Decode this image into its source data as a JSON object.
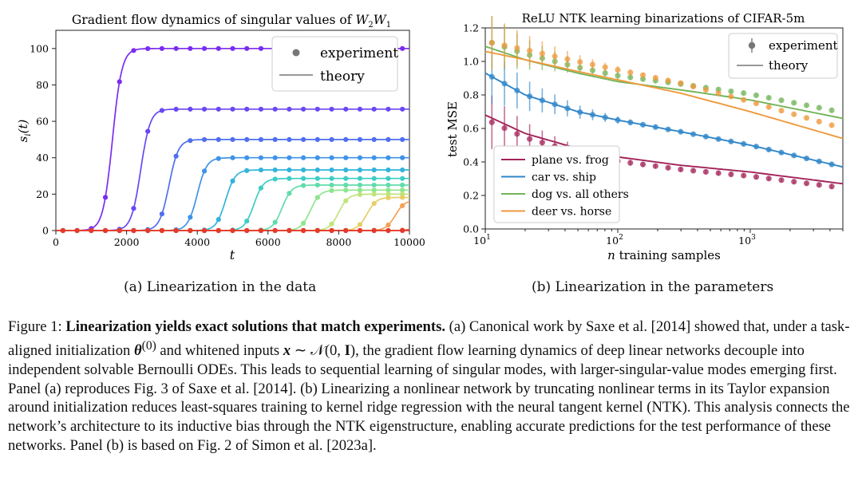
{
  "caption": {
    "label": "Figure 1:",
    "bold": "Linearization yields exact solutions that match experiments.",
    "p1": "(a) Canonical work by Saxe et al. [2014] showed that, under a task-aligned initialization",
    "theta": "θ",
    "theta_sup": "(0)",
    "p2": "and whitened inputs",
    "x": "x",
    "p3": "∼ 𝒩(0,",
    "I": "I",
    "p4": "), the gradient flow learning dynamics of deep linear networks decouple into independent solvable Bernoulli ODEs. This leads to sequential learning of singular modes, with larger-singular-value modes emerging first. Panel (a) reproduces Fig. 3 of Saxe et al. [2014]. (b) Linearizing a nonlinear network by truncating nonlinear terms in its Taylor expansion around initialization reduces least-squares training to kernel ridge regression with the neural tangent kernel (NTK). This analysis connects the network’s architecture to its inductive bias through the NTK eigenstructure, enabling accurate predictions for the test performance of these networks. Panel (b) is based on Fig. 2 of Simon et al. [2023a]."
  },
  "chart_data": [
    {
      "type": "line",
      "panel_caption": "(a) Linearization in the data",
      "title": "Gradient flow dynamics of singular values of",
      "title_math": [
        "W",
        "2",
        "W",
        "1"
      ],
      "xlabel": "t",
      "ylabel_math": [
        "s",
        "i",
        "(t)"
      ],
      "xlim": [
        0,
        10000
      ],
      "ylim": [
        0,
        110
      ],
      "xticks": [
        "0",
        "2000",
        "4000",
        "6000",
        "8000",
        "10000"
      ],
      "yticks": [
        "0",
        "20",
        "40",
        "60",
        "80",
        "100"
      ],
      "legend": {
        "position": "upper right",
        "entries": [
          "experiment",
          "theory"
        ]
      },
      "series": [
        {
          "final": 100,
          "t_half": 1600,
          "color": "#7b2cf0"
        },
        {
          "final": 66.7,
          "t_half": 2400,
          "color": "#6a47f2"
        },
        {
          "final": 50,
          "t_half": 3200,
          "color": "#4f6ff0"
        },
        {
          "final": 40,
          "t_half": 4000,
          "color": "#3f93e8"
        },
        {
          "final": 33.3,
          "t_half": 4800,
          "color": "#33b3dc"
        },
        {
          "final": 28.6,
          "t_half": 5600,
          "color": "#3dcdc5"
        },
        {
          "final": 25,
          "t_half": 6400,
          "color": "#62dcaa"
        },
        {
          "final": 22.2,
          "t_half": 7200,
          "color": "#8fe58f"
        },
        {
          "final": 20,
          "t_half": 8000,
          "color": "#bfe47b"
        },
        {
          "final": 18.2,
          "t_half": 8800,
          "color": "#e6cf68"
        },
        {
          "final": 16.7,
          "t_half": 9600,
          "color": "#f59f55"
        },
        {
          "final": 15.4,
          "t_half": 10400,
          "color": "#f0663f"
        },
        {
          "final": 14.3,
          "t_half": 11200,
          "color": "#e33a2d"
        }
      ]
    },
    {
      "type": "line",
      "panel_caption": "(b) Linearization in the parameters",
      "title": "ReLU NTK learning binarizations of CIFAR-5m",
      "xlabel_math": [
        "n",
        " training samples"
      ],
      "ylabel": "test MSE",
      "xscale": "log",
      "xlim": [
        10,
        5000
      ],
      "ylim": [
        0,
        1.2
      ],
      "yticks": [
        "0.0",
        "0.2",
        "0.4",
        "0.6",
        "0.8",
        "1.0",
        "1.2"
      ],
      "xticks": [
        {
          "base": "10",
          "exp": "1"
        },
        {
          "base": "10",
          "exp": "2"
        },
        {
          "base": "10",
          "exp": "3"
        }
      ],
      "legend_top": {
        "position": "upper right",
        "entries": [
          "experiment",
          "theory"
        ]
      },
      "legend_bottom": {
        "position": "lower left"
      },
      "series": [
        {
          "name": "plane vs. frog",
          "color": "#a3235a",
          "theory": [
            [
              10,
              0.68
            ],
            [
              20,
              0.57
            ],
            [
              50,
              0.48
            ],
            [
              100,
              0.43
            ],
            [
              300,
              0.38
            ],
            [
              1000,
              0.34
            ],
            [
              5000,
              0.27
            ]
          ]
        },
        {
          "name": "car vs. ship",
          "color": "#2f86c8",
          "theory": [
            [
              10,
              0.93
            ],
            [
              20,
              0.8
            ],
            [
              50,
              0.7
            ],
            [
              100,
              0.65
            ],
            [
              300,
              0.58
            ],
            [
              1000,
              0.5
            ],
            [
              5000,
              0.37
            ]
          ]
        },
        {
          "name": "dog vs. all others",
          "color": "#72b45a",
          "theory": [
            [
              10,
              1.09
            ],
            [
              20,
              1.01
            ],
            [
              50,
              0.93
            ],
            [
              100,
              0.88
            ],
            [
              300,
              0.83
            ],
            [
              1000,
              0.77
            ],
            [
              5000,
              0.66
            ]
          ]
        },
        {
          "name": "deer vs. horse",
          "color": "#ee9a3c",
          "theory": [
            [
              10,
              1.06
            ],
            [
              20,
              1.01
            ],
            [
              50,
              0.94
            ],
            [
              100,
              0.89
            ],
            [
              300,
              0.81
            ],
            [
              1000,
              0.7
            ],
            [
              5000,
              0.54
            ]
          ]
        }
      ]
    }
  ]
}
